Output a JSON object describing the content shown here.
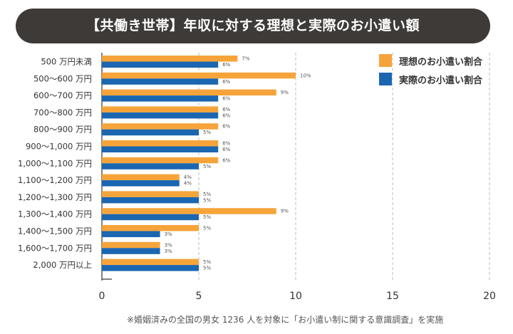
{
  "title": "【共働き世帯】年収に対する理想と実際のお小遣い額",
  "footnote": "※婚姻済みの全国の男女 1236 人を対象に「お小遣い制に関する意識調査」を実施",
  "colors": {
    "ideal": "#f6a43a",
    "actual": "#1a66b1",
    "title_bg": "#3d3a38"
  },
  "chart_data": {
    "type": "bar",
    "orientation": "horizontal",
    "categories": [
      "500 万円未満",
      "500〜600 万円",
      "600〜700 万円",
      "700〜800 万円",
      "800〜900 万円",
      "900〜1,000 万円",
      "1,000〜1,100 万円",
      "1,100〜1,200 万円",
      "1,200〜1,300 万円",
      "1,300〜1,400 万円",
      "1,400〜1,500 万円",
      "1,600〜1,700 万円",
      "2,000 万円以上"
    ],
    "series": [
      {
        "name": "理想のお小遣い割合",
        "values": [
          7,
          10,
          9,
          6,
          6,
          6,
          6,
          4,
          5,
          9,
          5,
          3,
          5
        ]
      },
      {
        "name": "実際のお小遣い割合",
        "values": [
          6,
          6,
          6,
          6,
          5,
          6,
          5,
          4,
          5,
          5,
          3,
          3,
          5
        ]
      }
    ],
    "value_suffix": "%",
    "xlim": [
      0,
      20
    ],
    "x_ticks": [
      0,
      5,
      10,
      15,
      20
    ],
    "grid": "vertical dashed",
    "legend_position": "top-right"
  }
}
